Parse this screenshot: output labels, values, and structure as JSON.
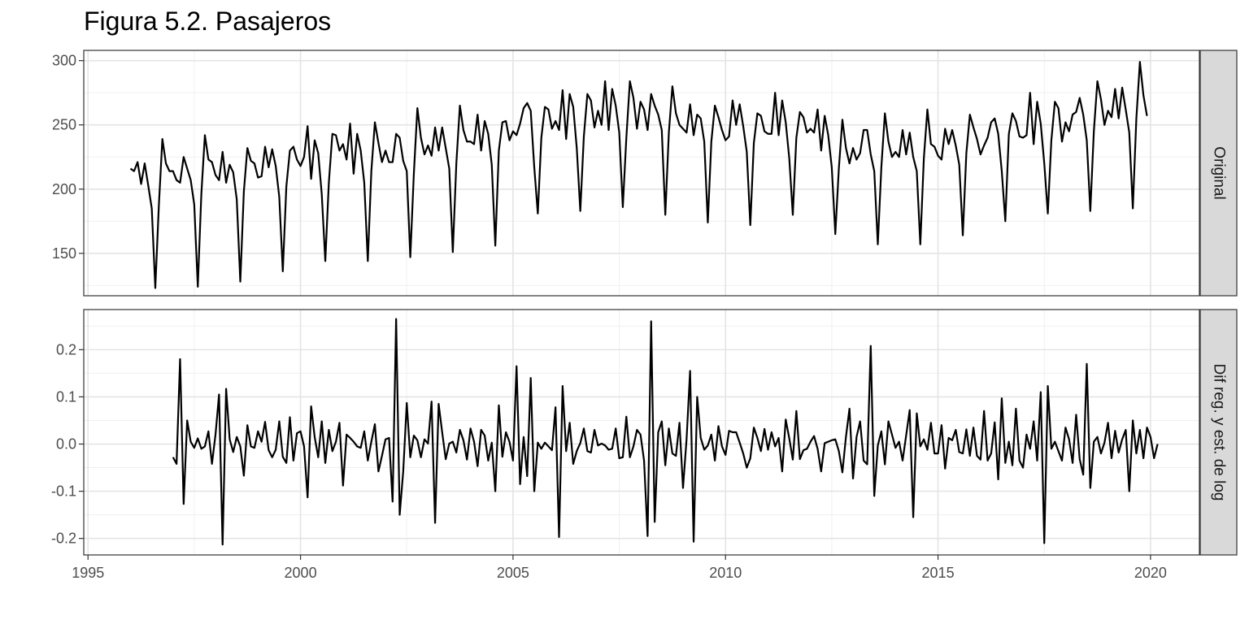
{
  "chart_data": {
    "type": "line",
    "title": "Figura 5.2. Pasajeros",
    "x_ticks": [
      1995,
      2000,
      2005,
      2010,
      2015,
      2020
    ],
    "xlim": [
      1994.9,
      2021.15
    ],
    "start": 1996.0,
    "frequency": 12,
    "grid": true,
    "panels": [
      {
        "name": "Original",
        "ylim": [
          117,
          308
        ],
        "y_ticks": [
          150,
          200,
          250,
          300
        ],
        "y_tick_labels": [
          "150",
          "200",
          "250",
          "300"
        ],
        "values": [
          216,
          214,
          221,
          204,
          220,
          203,
          185,
          123,
          187,
          239,
          220,
          214,
          214,
          207,
          205,
          225,
          216,
          207,
          188,
          124,
          196,
          242,
          223,
          221,
          211,
          207,
          229,
          205,
          219,
          213,
          192,
          128,
          198,
          232,
          222,
          220,
          209,
          210,
          233,
          217,
          231,
          218,
          194,
          136,
          202,
          230,
          233,
          223,
          218,
          225,
          249,
          208,
          238,
          228,
          196,
          144,
          205,
          243,
          242,
          230,
          235,
          223,
          251,
          212,
          243,
          230,
          205,
          144,
          214,
          252,
          236,
          221,
          230,
          221,
          221,
          243,
          240,
          222,
          214,
          147,
          212,
          263,
          240,
          227,
          234,
          226,
          248,
          230,
          248,
          232,
          216,
          151,
          220,
          265,
          246,
          237,
          237,
          235,
          258,
          230,
          253,
          243,
          219,
          156,
          230,
          252,
          253,
          238,
          245,
          242,
          251,
          263,
          267,
          261,
          217,
          181,
          240,
          264,
          262,
          247,
          253,
          246,
          277,
          239,
          274,
          264,
          232,
          183,
          241,
          274,
          269,
          248,
          261,
          250,
          284,
          246,
          278,
          265,
          244,
          186,
          240,
          284,
          271,
          247,
          268,
          262,
          246,
          274,
          265,
          258,
          246,
          180,
          244,
          280,
          259,
          250,
          247,
          244,
          266,
          242,
          258,
          255,
          237,
          174,
          237,
          265,
          256,
          246,
          238,
          241,
          269,
          250,
          266,
          249,
          229,
          172,
          236,
          259,
          257,
          245,
          243,
          243,
          275,
          242,
          269,
          252,
          224,
          180,
          240,
          260,
          256,
          244,
          247,
          244,
          262,
          230,
          257,
          242,
          217,
          165,
          216,
          254,
          232,
          220,
          232,
          223,
          228,
          246,
          246,
          227,
          214,
          157,
          217,
          259,
          237,
          225,
          229,
          225,
          246,
          227,
          244,
          225,
          214,
          157,
          224,
          262,
          235,
          233,
          226,
          223,
          247,
          235,
          246,
          234,
          219,
          164,
          228,
          258,
          248,
          239,
          227,
          234,
          240,
          252,
          255,
          243,
          214,
          175,
          243,
          259,
          253,
          241,
          240,
          242,
          275,
          235,
          268,
          251,
          220,
          181,
          238,
          268,
          263,
          237,
          252,
          245,
          258,
          260,
          271,
          258,
          238,
          183,
          245,
          284,
          270,
          250,
          261,
          256,
          278,
          255,
          279,
          262,
          244,
          185,
          255,
          299,
          273,
          257
        ]
      },
      {
        "name": "Dif reg. y est. de log",
        "ylim": [
          -0.235,
          0.285
        ],
        "y_ticks": [
          -0.2,
          -0.1,
          0.0,
          0.1,
          0.2
        ],
        "y_tick_labels": [
          "-0.2",
          "-0.1",
          "0.0",
          "0.1",
          "0.2"
        ],
        "start": 1997.0,
        "values": [
          -0.028,
          -0.042,
          0.18,
          -0.127,
          0.05,
          0.005,
          -0.008,
          0.012,
          -0.01,
          -0.005,
          0.027,
          -0.042,
          0.02,
          0.105,
          -0.213,
          0.117,
          0.01,
          -0.017,
          0.015,
          -0.005,
          -0.067,
          0.04,
          -0.005,
          -0.008,
          0.027,
          0.005,
          0.047,
          -0.013,
          -0.028,
          -0.012,
          0.048,
          -0.027,
          -0.04,
          0.057,
          -0.035,
          0.023,
          0.027,
          -0.005,
          -0.113,
          0.08,
          0.015,
          -0.028,
          0.048,
          -0.04,
          0.03,
          -0.015,
          0.005,
          0.045,
          -0.088,
          0.02,
          0.013,
          0.005,
          -0.005,
          -0.008,
          0.027,
          -0.035,
          0.005,
          0.042,
          -0.058,
          -0.025,
          0.01,
          0.013,
          -0.122,
          0.265,
          -0.15,
          -0.058,
          0.087,
          -0.028,
          0.018,
          0.008,
          -0.028,
          0.01,
          0.001,
          0.09,
          -0.167,
          0.085,
          0.025,
          -0.032,
          0.001,
          0.005,
          -0.018,
          0.03,
          0.008,
          -0.033,
          0.033,
          0.005,
          -0.047,
          0.03,
          0.018,
          -0.035,
          0.003,
          -0.1,
          0.082,
          -0.027,
          0.025,
          0.005,
          -0.035,
          0.165,
          -0.085,
          0.015,
          -0.068,
          0.14,
          -0.1,
          0.003,
          -0.01,
          0.003,
          -0.005,
          -0.013,
          0.078,
          -0.197,
          0.123,
          -0.015,
          0.045,
          -0.042,
          -0.015,
          0.002,
          0.033,
          -0.015,
          -0.018,
          0.03,
          -0.003,
          0.001,
          -0.003,
          -0.012,
          -0.01,
          0.033,
          -0.03,
          -0.028,
          0.058,
          -0.028,
          -0.005,
          0.03,
          0.02,
          -0.035,
          -0.195,
          0.26,
          -0.165,
          0.025,
          0.048,
          -0.045,
          0.033,
          -0.02,
          -0.025,
          0.045,
          -0.093,
          0.01,
          0.155,
          -0.207,
          0.1,
          0.013,
          -0.012,
          -0.003,
          0.02,
          -0.035,
          0.038,
          -0.005,
          -0.023,
          0.028,
          0.025,
          0.025,
          0.003,
          -0.02,
          -0.05,
          -0.03,
          0.035,
          0.013,
          -0.015,
          0.032,
          -0.012,
          0.025,
          -0.005,
          0.013,
          -0.058,
          0.052,
          0.012,
          -0.033,
          0.07,
          -0.032,
          -0.013,
          -0.01,
          0.005,
          0.017,
          -0.01,
          -0.058,
          0.002,
          0.005,
          0.008,
          0.01,
          -0.015,
          -0.06,
          0.015,
          0.075,
          -0.073,
          0.015,
          0.048,
          -0.035,
          -0.043,
          0.208,
          -0.11,
          -0.003,
          0.027,
          -0.043,
          0.048,
          0.02,
          -0.008,
          0.005,
          -0.035,
          0.018,
          0.072,
          -0.155,
          0.065,
          -0.005,
          0.01,
          -0.012,
          0.045,
          -0.02,
          -0.02,
          0.04,
          -0.052,
          0.013,
          0.008,
          0.03,
          -0.017,
          -0.02,
          0.031,
          -0.025,
          0.035,
          -0.025,
          -0.033,
          0.07,
          -0.035,
          -0.02,
          0.046,
          -0.075,
          0.097,
          -0.04,
          0.005,
          -0.045,
          0.075,
          -0.035,
          -0.05,
          0.02,
          -0.01,
          0.048,
          -0.035,
          0.11,
          -0.21,
          0.123,
          -0.01,
          0.005,
          -0.015,
          -0.035,
          0.035,
          0.01,
          -0.04,
          0.062,
          -0.032,
          -0.065,
          0.17,
          -0.093,
          0.005,
          0.015,
          -0.02,
          0.003,
          0.045,
          -0.03,
          0.028,
          -0.018,
          0.01,
          0.03,
          -0.1,
          0.05,
          -0.02,
          0.03,
          -0.03,
          0.035,
          0.015,
          -0.03,
          0.0
        ]
      }
    ]
  }
}
